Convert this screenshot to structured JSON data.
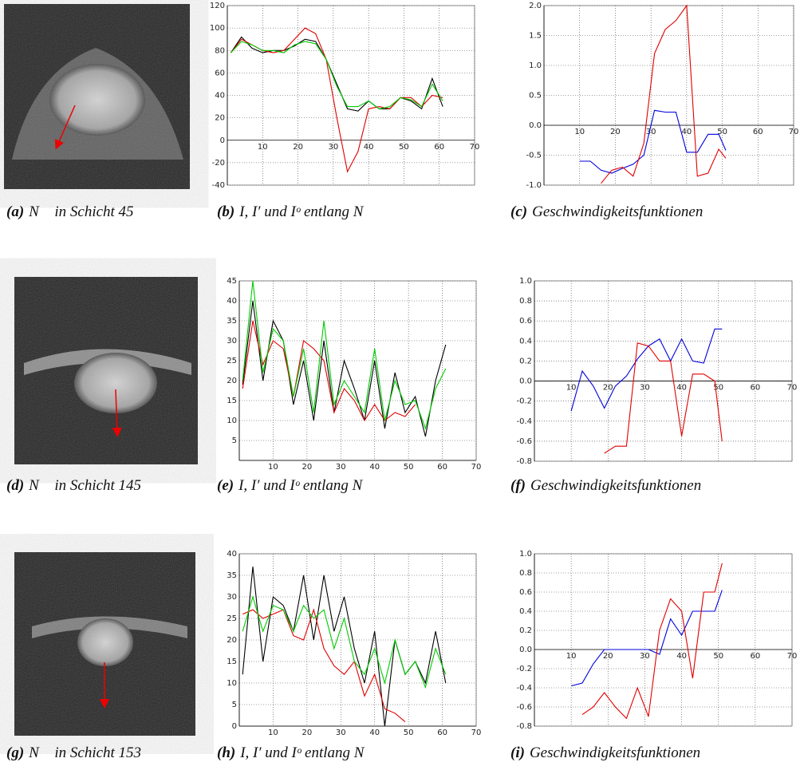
{
  "chart_data": [
    {
      "type": "line",
      "x": [
        1,
        4,
        7,
        10,
        13,
        16,
        19,
        22,
        25,
        28,
        31,
        34,
        37,
        40,
        43,
        46,
        49,
        52,
        55,
        58,
        61
      ],
      "xlim": [
        0,
        70
      ],
      "xticks": [
        10,
        20,
        30,
        40,
        50,
        60,
        70
      ],
      "ylim": [
        -40,
        120
      ],
      "yticks": [
        -40,
        -20,
        0,
        20,
        40,
        60,
        80,
        100,
        120
      ],
      "grid": true,
      "series": [
        {
          "color": "#000000",
          "values": [
            78,
            92,
            82,
            78,
            80,
            80,
            84,
            90,
            88,
            72,
            50,
            28,
            26,
            35,
            28,
            28,
            38,
            35,
            28,
            55,
            30
          ]
        },
        {
          "color": "#e00000",
          "values": [
            78,
            90,
            85,
            80,
            78,
            80,
            90,
            100,
            95,
            72,
            20,
            -28,
            -10,
            28,
            30,
            28,
            38,
            38,
            30,
            40,
            38
          ]
        },
        {
          "color": "#00cc00",
          "values": [
            78,
            88,
            85,
            80,
            80,
            78,
            85,
            88,
            86,
            72,
            48,
            30,
            30,
            35,
            28,
            30,
            38,
            36,
            30,
            50,
            35
          ]
        }
      ]
    },
    {
      "type": "line",
      "x": [
        10,
        13,
        16,
        19,
        22,
        25,
        28,
        31,
        34,
        37,
        40,
        43,
        46,
        49,
        51
      ],
      "xlim": [
        0,
        70
      ],
      "xticks": [
        10,
        20,
        30,
        40,
        50,
        60,
        70
      ],
      "ylim": [
        -1,
        2
      ],
      "yticks": [
        {
          "value": -1,
          "label": "-1.0"
        },
        -0.5,
        {
          "value": 0,
          "label": "0.0"
        },
        0.5,
        {
          "value": 1,
          "label": "1.0"
        },
        1.5,
        {
          "value": 2,
          "label": "2.0"
        }
      ],
      "grid": true,
      "series": [
        {
          "color": "#0000dd",
          "values": [
            -0.6,
            -0.6,
            -0.75,
            -0.8,
            -0.72,
            -0.65,
            -0.5,
            0.25,
            0.22,
            0.22,
            -0.45,
            -0.45,
            -0.15,
            -0.15,
            -0.42
          ]
        },
        {
          "color": "#e00000",
          "values": [
            null,
            null,
            -0.97,
            -0.75,
            -0.7,
            -0.85,
            -0.3,
            1.2,
            1.6,
            1.75,
            2.0,
            -0.85,
            -0.8,
            -0.4,
            -0.55
          ]
        }
      ]
    },
    {
      "type": "line",
      "x": [
        1,
        4,
        7,
        10,
        13,
        16,
        19,
        22,
        25,
        28,
        31,
        34,
        37,
        40,
        43,
        46,
        49,
        52,
        55,
        58,
        61
      ],
      "xlim": [
        0,
        70
      ],
      "xticks": [
        10,
        20,
        30,
        40,
        50,
        60,
        70
      ],
      "ylim": [
        0,
        45
      ],
      "yticks": [
        5,
        10,
        15,
        20,
        25,
        30,
        35,
        40,
        45
      ],
      "grid": true,
      "series": [
        {
          "color": "#000000",
          "values": [
            19,
            40,
            20,
            35,
            30,
            14,
            25,
            10,
            30,
            12,
            25,
            18,
            10,
            25,
            8,
            22,
            12,
            16,
            6,
            20,
            29
          ]
        },
        {
          "color": "#e00000",
          "values": [
            18,
            35,
            24,
            30,
            28,
            16,
            30,
            28,
            25,
            12,
            18,
            15,
            10,
            14,
            10,
            12,
            11,
            14,
            null,
            null,
            null
          ]
        },
        {
          "color": "#00cc00",
          "values": [
            20,
            45,
            22,
            33,
            30,
            16,
            28,
            12,
            35,
            14,
            20,
            16,
            12,
            28,
            10,
            20,
            14,
            15,
            8,
            18,
            23
          ]
        }
      ]
    },
    {
      "type": "line",
      "x": [
        10,
        13,
        16,
        19,
        22,
        25,
        28,
        31,
        34,
        37,
        40,
        43,
        46,
        49,
        51
      ],
      "xlim": [
        0,
        70
      ],
      "xticks": [
        10,
        20,
        30,
        40,
        50,
        60,
        70
      ],
      "ylim": [
        -0.8,
        1
      ],
      "yticks": [
        -0.8,
        -0.6,
        -0.4,
        -0.2,
        {
          "value": 0,
          "label": "0.0"
        },
        0.2,
        0.4,
        0.6,
        0.8,
        {
          "value": 1,
          "label": "1.0"
        }
      ],
      "grid": true,
      "series": [
        {
          "color": "#0000dd",
          "values": [
            -0.3,
            0.1,
            -0.05,
            -0.27,
            -0.05,
            0.05,
            0.22,
            0.35,
            0.42,
            0.2,
            0.42,
            0.2,
            0.18,
            0.52,
            0.52
          ]
        },
        {
          "color": "#e00000",
          "values": [
            null,
            null,
            null,
            -0.72,
            -0.65,
            -0.65,
            0.38,
            0.35,
            0.2,
            0.2,
            -0.55,
            0.07,
            0.07,
            0.0,
            -0.6
          ]
        }
      ]
    },
    {
      "type": "line",
      "x": [
        1,
        4,
        7,
        10,
        13,
        16,
        19,
        22,
        25,
        28,
        31,
        34,
        37,
        40,
        43,
        46,
        49,
        52,
        55,
        58,
        61
      ],
      "xlim": [
        0,
        70
      ],
      "xticks": [
        10,
        20,
        30,
        40,
        50,
        60,
        70
      ],
      "ylim": [
        0,
        40
      ],
      "yticks": [
        0,
        5,
        10,
        15,
        20,
        25,
        30,
        35,
        40
      ],
      "grid": true,
      "series": [
        {
          "color": "#000000",
          "values": [
            12,
            37,
            15,
            30,
            28,
            22,
            35,
            20,
            35,
            22,
            30,
            18,
            10,
            22,
            0,
            20,
            12,
            15,
            10,
            22,
            10
          ]
        },
        {
          "color": "#e00000",
          "values": [
            26,
            27,
            25,
            26,
            27,
            21,
            20,
            27,
            18,
            14,
            12,
            15,
            7,
            12,
            4,
            3,
            1,
            null,
            null,
            null,
            null
          ]
        },
        {
          "color": "#00cc00",
          "values": [
            22,
            30,
            22,
            28,
            27,
            22,
            28,
            25,
            27,
            18,
            25,
            15,
            12,
            18,
            10,
            20,
            12,
            15,
            9,
            18,
            12
          ]
        }
      ]
    },
    {
      "type": "line",
      "x": [
        10,
        13,
        16,
        19,
        22,
        25,
        28,
        31,
        34,
        37,
        40,
        43,
        46,
        49,
        51
      ],
      "xlim": [
        0,
        70
      ],
      "xticks": [
        10,
        20,
        30,
        40,
        50,
        60,
        70
      ],
      "ylim": [
        -0.8,
        1
      ],
      "yticks": [
        -0.8,
        -0.6,
        -0.4,
        -0.2,
        {
          "value": 0,
          "label": "0.0"
        },
        0.2,
        0.4,
        0.6,
        0.8,
        {
          "value": 1,
          "label": "1.0"
        }
      ],
      "grid": true,
      "series": [
        {
          "color": "#0000dd",
          "values": [
            -0.38,
            -0.35,
            -0.15,
            0,
            0,
            0,
            0,
            0,
            -0.05,
            0.32,
            0.15,
            0.4,
            0.4,
            0.4,
            0.62
          ]
        },
        {
          "color": "#e00000",
          "values": [
            null,
            -0.68,
            -0.6,
            -0.45,
            -0.6,
            -0.72,
            -0.4,
            -0.7,
            0.2,
            0.53,
            0.4,
            -0.3,
            0.6,
            0.6,
            0.9
          ]
        }
      ]
    }
  ],
  "captions": [
    {
      "label": "(a)",
      "text": "N⃗  in Schicht 45"
    },
    {
      "label": "(b)",
      "text": "I, I′ und Iᵒ entlang N⃗"
    },
    {
      "label": "(c)",
      "text": "Geschwindigkeitsfunktionen"
    },
    {
      "label": "(d)",
      "text": "N⃗  in Schicht 145"
    },
    {
      "label": "(e)",
      "text": "I, I′ und Iᵒ entlang N⃗"
    },
    {
      "label": "(f)",
      "text": "Geschwindigkeitsfunktionen"
    },
    {
      "label": "(g)",
      "text": "N⃗  in Schicht 153"
    },
    {
      "label": "(h)",
      "text": "I, I′ und Iᵒ entlang N⃗"
    },
    {
      "label": "(i)",
      "text": "Geschwindigkeitsfunktionen"
    }
  ]
}
